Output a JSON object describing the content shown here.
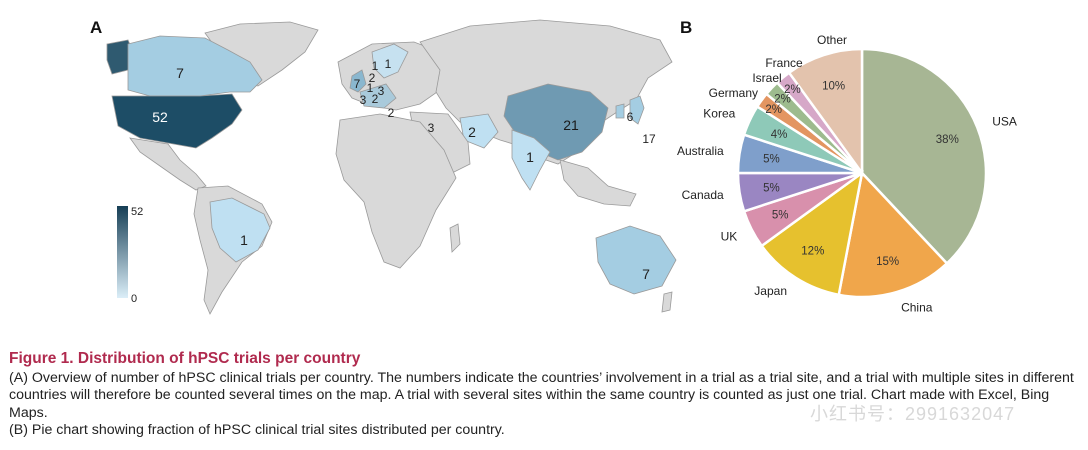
{
  "panels": {
    "a": "A",
    "b": "B"
  },
  "map": {
    "scale": {
      "max_label": "52",
      "min_label": "0",
      "low_color": "#dbeef8",
      "high_color": "#163e55"
    },
    "land_color": "#d9d9d9",
    "border_color": "#9a9a9a",
    "counts": [
      {
        "country": "Canada",
        "value": "7"
      },
      {
        "country": "USA",
        "value": "52"
      },
      {
        "country": "Brazil",
        "value": "1"
      },
      {
        "country": "Australia",
        "value": "7"
      },
      {
        "country": "China",
        "value": "21"
      },
      {
        "country": "India",
        "value": "1"
      },
      {
        "country": "Iran",
        "value": "2"
      },
      {
        "country": "Japan",
        "value": "17"
      },
      {
        "country": "South Korea",
        "value": "6"
      },
      {
        "country": "Israel",
        "value": "3"
      },
      {
        "country": "Greece",
        "value": "2"
      },
      {
        "country": "UK",
        "value": "7"
      },
      {
        "country": "Norway",
        "value": "1"
      },
      {
        "country": "Sweden",
        "value": "1"
      },
      {
        "country": "Denmark",
        "value": "2"
      },
      {
        "country": "Netherlands",
        "value": "1"
      },
      {
        "country": "Belgium",
        "value": "3"
      },
      {
        "country": "Germany",
        "value": "2"
      },
      {
        "country": "Czechia",
        "value": "3"
      }
    ]
  },
  "chart_data": {
    "type": "pie",
    "slices": [
      {
        "label": "USA",
        "value": 38,
        "pct_label": "38%",
        "color": "#a7b694"
      },
      {
        "label": "China",
        "value": 15,
        "pct_label": "15%",
        "color": "#f0a64b"
      },
      {
        "label": "Japan",
        "value": 12,
        "pct_label": "12%",
        "color": "#e6c12e"
      },
      {
        "label": "UK",
        "value": 5,
        "pct_label": "5%",
        "color": "#d890ac"
      },
      {
        "label": "Canada",
        "value": 5,
        "pct_label": "5%",
        "color": "#9a86c2"
      },
      {
        "label": "Australia",
        "value": 5,
        "pct_label": "5%",
        "color": "#7f9fcb"
      },
      {
        "label": "Korea",
        "value": 4,
        "pct_label": "4%",
        "color": "#8ec9b8"
      },
      {
        "label": "Germany",
        "value": 2,
        "pct_label": "2%",
        "color": "#e39561"
      },
      {
        "label": "Israel",
        "value": 2,
        "pct_label": "2%",
        "color": "#9dbb8e"
      },
      {
        "label": "France",
        "value": 2,
        "pct_label": "2%",
        "color": "#d6a8c8"
      },
      {
        "label": "Other",
        "value": 10,
        "pct_label": "10%",
        "color": "#e3c3ad"
      }
    ]
  },
  "caption": {
    "title": "Figure 1. Distribution of hPSC trials per country",
    "line_a": "(A) Overview of number of hPSC clinical trials per country. The numbers indicate the countries’ involvement in a trial as a trial site, and a trial with multiple sites in different countries will therefore be counted several times on the map. A trial with several sites within the same country is counted as just one trial. Chart made with Excel, Bing Maps.",
    "line_b": "(B) Pie chart showing fraction of hPSC clinical trial sites distributed per country."
  },
  "watermark": "小红书号：2991632047"
}
